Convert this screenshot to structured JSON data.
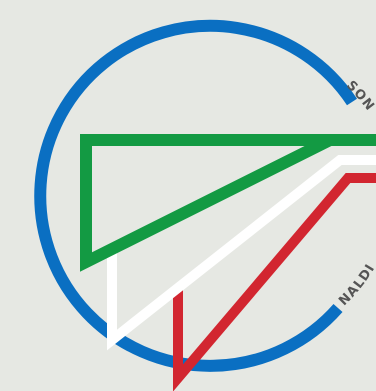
{
  "logo": {
    "background_color": "#e6e8e3",
    "ring_color": "#0a6fc2",
    "stripe_colors": {
      "green": "#139a43",
      "white": "#ffffff",
      "red": "#d22630"
    },
    "arc_text_top": "SON",
    "arc_text_bottom": "NALDI"
  }
}
